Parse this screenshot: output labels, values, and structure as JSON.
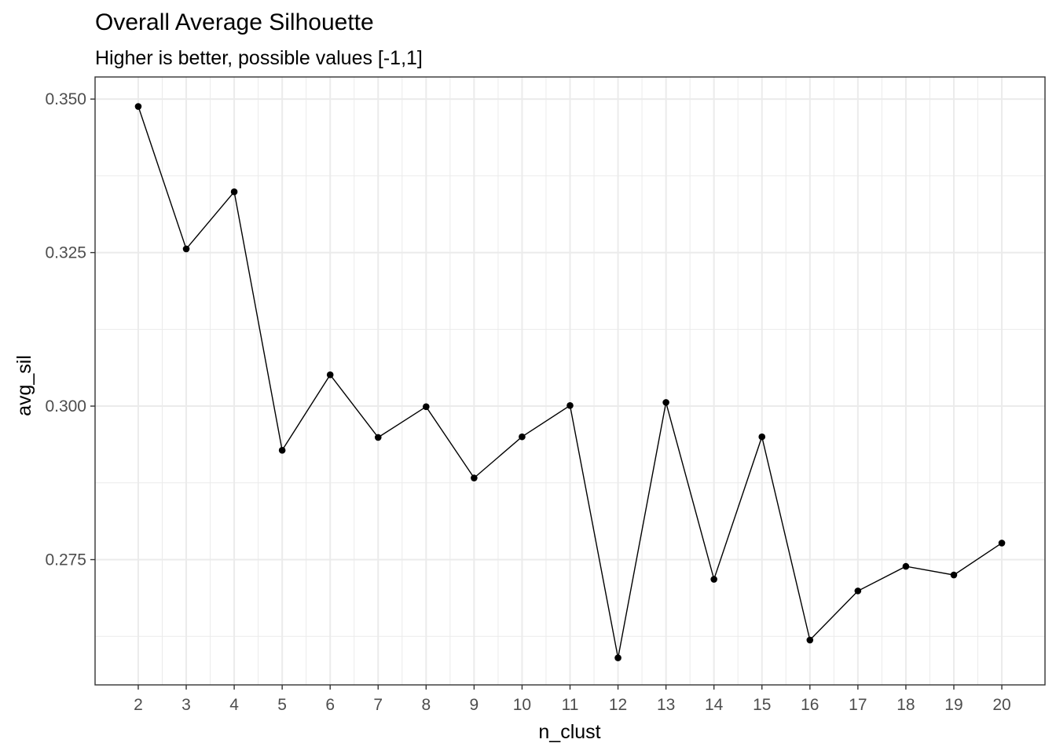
{
  "chart_data": {
    "type": "line",
    "title": "Overall Average Silhouette",
    "subtitle": "Higher is better, possible values [-1,1]",
    "xlabel": "n_clust",
    "ylabel": "avg_sil",
    "x": [
      2,
      3,
      4,
      5,
      6,
      7,
      8,
      9,
      10,
      11,
      12,
      13,
      14,
      15,
      16,
      17,
      18,
      19,
      20
    ],
    "y": [
      0.3488,
      0.3256,
      0.3349,
      0.2928,
      0.3051,
      0.2949,
      0.2999,
      0.2883,
      0.295,
      0.3001,
      0.259,
      0.3006,
      0.2718,
      0.295,
      0.2619,
      0.2699,
      0.2739,
      0.2725,
      0.2777
    ],
    "xticks": [
      "2",
      "3",
      "4",
      "5",
      "6",
      "7",
      "8",
      "9",
      "10",
      "11",
      "12",
      "13",
      "14",
      "15",
      "16",
      "17",
      "18",
      "19",
      "20"
    ],
    "yticks": [
      {
        "value": 0.275,
        "label": "0.275"
      },
      {
        "value": 0.3,
        "label": "0.300"
      },
      {
        "value": 0.325,
        "label": "0.325"
      },
      {
        "value": 0.35,
        "label": "0.350"
      }
    ],
    "xlim": [
      1.1,
      20.9
    ],
    "ylim": [
      0.2546,
      0.3536
    ],
    "grid": true,
    "colors": {
      "line": "#000000",
      "point": "#000000",
      "grid": "#ebebeb",
      "panel_border": "#333333",
      "tick_text": "#4d4d4d"
    }
  }
}
